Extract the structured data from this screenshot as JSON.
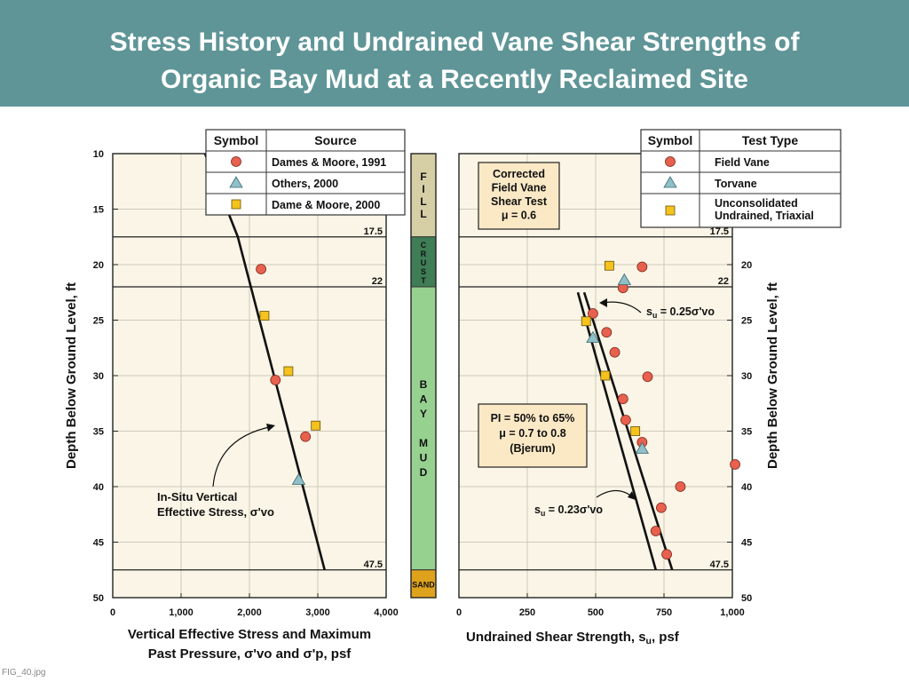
{
  "header": {
    "title_line1": "Stress History and Undrained Vane Shear Strengths of",
    "title_line2": "Organic Bay Mud at a Recently Reclaimed Site"
  },
  "footer": {
    "filename": "FIG_40.jpg"
  },
  "colors": {
    "banner": "#5f9597",
    "plot_bg": "#faf5e6",
    "circle": "#e8604e",
    "triangle": "#8fc0c7",
    "square": "#f5c21e",
    "fill": "#d6cfa6",
    "crust": "#3f7d56",
    "bay_mud": "#96d18f",
    "sand": "#dfa21d"
  },
  "chart_data": [
    {
      "type": "scatter",
      "ylabel": "Depth Below Ground Level, ft",
      "xlabel_line1": "Vertical Effective Stress and Maximum",
      "xlabel_line2": "Past Pressure, σ'vo and σ'p, psf",
      "xlim": [
        0,
        4000
      ],
      "ylim": [
        10,
        50
      ],
      "y_inverted": true,
      "xticks": [
        0,
        1000,
        2000,
        3000,
        4000
      ],
      "xtick_labels": [
        "0",
        "1,000",
        "2,000",
        "3,000",
        "4,000"
      ],
      "yticks": [
        10,
        15,
        20,
        25,
        30,
        35,
        40,
        45,
        50
      ],
      "ytick_labels": [
        "10",
        "15",
        "20",
        "25",
        "30",
        "35",
        "40",
        "45",
        "50"
      ],
      "grid": true,
      "horizontal_lines": [
        {
          "y": 17.5,
          "label": "17.5"
        },
        {
          "y": 22,
          "label": "22"
        },
        {
          "y": 47.5,
          "label": "47.5"
        }
      ],
      "legend": {
        "position": "top-right",
        "header_symbol": "Symbol",
        "header_source": "Source",
        "entries": [
          {
            "marker": "circle",
            "label": "Dames & Moore, 1991"
          },
          {
            "marker": "triangle",
            "label": "Others, 2000"
          },
          {
            "marker": "square",
            "label": "Dame & Moore, 2000"
          }
        ]
      },
      "series": [
        {
          "marker": "circle",
          "points": [
            [
              2170,
              20.4
            ],
            [
              2380,
              30.4
            ],
            [
              2820,
              35.5
            ]
          ]
        },
        {
          "marker": "triangle",
          "points": [
            [
              2720,
              39.4
            ]
          ]
        },
        {
          "marker": "square",
          "points": [
            [
              2220,
              24.6
            ],
            [
              2570,
              29.6
            ],
            [
              2970,
              34.5
            ]
          ]
        }
      ],
      "curve": {
        "points": [
          [
            1350,
            10
          ],
          [
            1830,
            17.5
          ],
          [
            3100,
            47.5
          ]
        ]
      },
      "annotation": {
        "line1": "In-Situ Vertical",
        "line2": "Effective Stress, σ'vo"
      }
    },
    {
      "type": "table",
      "name": "soil column",
      "layers": [
        {
          "top": 10,
          "bottom": 17.5,
          "text": "F\nI\nL\nL",
          "color": "#d6cfa6"
        },
        {
          "top": 17.5,
          "bottom": 22,
          "text": "C\nR\nU\nS\nT",
          "color": "#3f7d56"
        },
        {
          "top": 22,
          "bottom": 47.5,
          "text": "B\nA\nY\n\nM\nU\nD",
          "color": "#96d18f"
        },
        {
          "top": 47.5,
          "bottom": 50,
          "text": "SAND",
          "color": "#dfa21d"
        }
      ]
    },
    {
      "type": "scatter",
      "ylabel": "Depth Below Ground Level, ft",
      "xlabel": "Undrained Shear Strength, su, psf",
      "xlim": [
        0,
        1000
      ],
      "ylim": [
        10,
        50
      ],
      "y_inverted": true,
      "xticks": [
        0,
        250,
        500,
        750,
        1000
      ],
      "xtick_labels": [
        "0",
        "250",
        "500",
        "750",
        "1,000"
      ],
      "yticks": [
        20,
        25,
        30,
        35,
        40,
        45,
        50
      ],
      "ytick_labels": [
        "20",
        "25",
        "30",
        "35",
        "40",
        "45",
        "50"
      ],
      "grid": true,
      "horizontal_lines": [
        {
          "y": 17.5,
          "label": "17.5"
        },
        {
          "y": 22,
          "label": "22"
        },
        {
          "y": 47.5,
          "label": "47.5"
        }
      ],
      "legend": {
        "position": "top-right",
        "header_symbol": "Symbol",
        "header_type": "Test Type",
        "entries": [
          {
            "marker": "circle",
            "label": "Field Vane"
          },
          {
            "marker": "triangle",
            "label": "Torvane"
          },
          {
            "marker": "square",
            "label": "Unconsolidated\nUndrained, Triaxial"
          }
        ]
      },
      "series": [
        {
          "marker": "circle",
          "points": [
            [
              670,
              20.2
            ],
            [
              600,
              22.1
            ],
            [
              490,
              24.4
            ],
            [
              540,
              26.1
            ],
            [
              570,
              27.9
            ],
            [
              690,
              30.1
            ],
            [
              600,
              32.1
            ],
            [
              610,
              34.0
            ],
            [
              670,
              36.0
            ],
            [
              1010,
              38.0
            ],
            [
              810,
              40.0
            ],
            [
              740,
              41.9
            ],
            [
              720,
              44.0
            ],
            [
              760,
              46.1
            ]
          ]
        },
        {
          "marker": "triangle",
          "points": [
            [
              605,
              21.4
            ],
            [
              490,
              26.6
            ],
            [
              670,
              36.6
            ]
          ]
        },
        {
          "marker": "square",
          "points": [
            [
              550,
              20.1
            ],
            [
              465,
              25.1
            ],
            [
              535,
              30.0
            ],
            [
              645,
              35.0
            ]
          ]
        }
      ],
      "lines": [
        {
          "label": "su = 0.25σ'vo",
          "points": [
            [
              458,
              22.5
            ],
            [
              780,
              47.5
            ]
          ]
        },
        {
          "label": "su = 0.23σ'vo",
          "points": [
            [
              435,
              22.5
            ],
            [
              720,
              47.5
            ]
          ]
        }
      ],
      "boxes": [
        {
          "lines": [
            "Corrected",
            "Field Vane",
            "Shear Test",
            "μ = 0.6"
          ]
        },
        {
          "lines": [
            "PI = 50% to 65%",
            "μ = 0.7 to 0.8",
            "(Bjerum)"
          ]
        }
      ]
    }
  ]
}
